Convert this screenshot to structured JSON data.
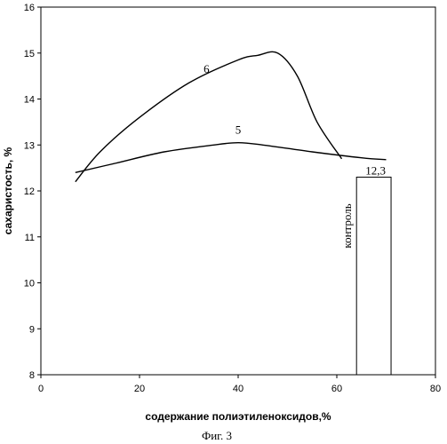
{
  "chart_data": {
    "type": "line",
    "xlabel": "содержание полиэтиленоксидов,%",
    "ylabel": "сахаристость, %",
    "caption": "Фиг. 3",
    "xlim": [
      0,
      80
    ],
    "ylim": [
      8,
      16
    ],
    "xticks": [
      0,
      20,
      40,
      60,
      80
    ],
    "yticks": [
      8,
      9,
      10,
      11,
      12,
      13,
      14,
      15,
      16
    ],
    "grid": false,
    "series": [
      {
        "name": "5",
        "x": [
          7,
          15,
          25,
          35,
          40,
          45,
          55,
          65,
          70
        ],
        "y": [
          12.4,
          12.6,
          12.85,
          13.0,
          13.05,
          13.0,
          12.85,
          12.72,
          12.68
        ]
      },
      {
        "name": "6",
        "x": [
          7,
          12,
          20,
          30,
          40,
          44,
          48,
          52,
          56,
          61
        ],
        "y": [
          12.2,
          12.85,
          13.6,
          14.35,
          14.85,
          14.95,
          15.0,
          14.5,
          13.5,
          12.7
        ]
      }
    ],
    "control": {
      "label": "контроль",
      "value": 12.3,
      "value_label": "12,3",
      "x_range": [
        64,
        71
      ]
    }
  }
}
